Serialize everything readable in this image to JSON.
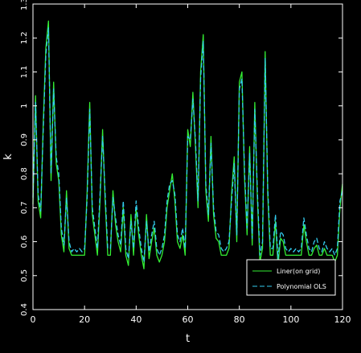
{
  "chart_data": {
    "type": "line",
    "title": "",
    "xlabel": "t",
    "ylabel": "k",
    "xlim": [
      0,
      120
    ],
    "ylim": [
      0.4,
      1.3
    ],
    "xticks": [
      "0",
      "20",
      "40",
      "60",
      "80",
      "100",
      "120"
    ],
    "yticks": [
      "0.4",
      "0.5",
      "0.6",
      "0.7",
      "0.8",
      "0.9",
      "1",
      "1.1",
      "1.2",
      "1.3"
    ],
    "grid": false,
    "legend_position": "bottom-right",
    "colors": {
      "background": "#000000",
      "axes": "#ffffff",
      "series1": "#33ee33",
      "series2": "#33ccee"
    },
    "series": [
      {
        "name": "Liner(on grid)",
        "x": [
          0,
          1,
          2,
          3,
          4,
          5,
          6,
          7,
          8,
          9,
          10,
          11,
          12,
          13,
          14,
          15,
          16,
          17,
          18,
          19,
          20,
          21,
          22,
          23,
          24,
          25,
          26,
          27,
          28,
          29,
          30,
          31,
          32,
          33,
          34,
          35,
          36,
          37,
          38,
          39,
          40,
          41,
          42,
          43,
          44,
          45,
          46,
          47,
          48,
          49,
          50,
          51,
          52,
          53,
          54,
          55,
          56,
          57,
          58,
          59,
          60,
          61,
          62,
          63,
          64,
          65,
          66,
          67,
          68,
          69,
          70,
          71,
          72,
          73,
          74,
          75,
          76,
          77,
          78,
          79,
          80,
          81,
          82,
          83,
          84,
          85,
          86,
          87,
          88,
          89,
          90,
          91,
          92,
          93,
          94,
          95,
          96,
          97,
          98,
          99,
          100,
          101,
          102,
          103,
          104,
          105,
          106,
          107,
          108,
          109,
          110,
          111,
          112,
          113,
          114,
          115,
          116,
          117,
          118,
          119,
          120
        ],
        "y": [
          0.71,
          1.03,
          0.72,
          0.67,
          0.95,
          1.17,
          1.25,
          0.78,
          1.07,
          0.83,
          0.78,
          0.62,
          0.57,
          0.75,
          0.58,
          0.56,
          0.56,
          0.56,
          0.56,
          0.56,
          0.56,
          0.75,
          1.01,
          0.68,
          0.62,
          0.56,
          0.72,
          0.93,
          0.72,
          0.56,
          0.56,
          0.75,
          0.65,
          0.6,
          0.57,
          0.7,
          0.56,
          0.53,
          0.68,
          0.56,
          0.7,
          0.62,
          0.56,
          0.52,
          0.68,
          0.55,
          0.6,
          0.64,
          0.56,
          0.54,
          0.56,
          0.6,
          0.7,
          0.75,
          0.8,
          0.72,
          0.6,
          0.58,
          0.62,
          0.56,
          0.93,
          0.88,
          1.04,
          0.88,
          0.7,
          1.1,
          1.21,
          0.75,
          0.66,
          0.91,
          0.68,
          0.61,
          0.6,
          0.56,
          0.56,
          0.56,
          0.58,
          0.74,
          0.85,
          0.6,
          1.07,
          1.1,
          0.79,
          0.62,
          0.88,
          0.59,
          1.01,
          0.73,
          0.54,
          0.58,
          1.16,
          0.74,
          0.56,
          0.56,
          0.66,
          0.53,
          0.61,
          0.6,
          0.56,
          0.56,
          0.56,
          0.56,
          0.56,
          0.56,
          0.56,
          0.65,
          0.6,
          0.56,
          0.56,
          0.58,
          0.59,
          0.56,
          0.56,
          0.58,
          0.56,
          0.56,
          0.56,
          0.54,
          0.56,
          0.7,
          0.77
        ]
      },
      {
        "name": "Polynomial OLS",
        "x": [
          0,
          1,
          2,
          3,
          4,
          5,
          6,
          7,
          8,
          9,
          10,
          11,
          12,
          13,
          14,
          15,
          16,
          17,
          18,
          19,
          20,
          21,
          22,
          23,
          24,
          25,
          26,
          27,
          28,
          29,
          30,
          31,
          32,
          33,
          34,
          35,
          36,
          37,
          38,
          39,
          40,
          41,
          42,
          43,
          44,
          45,
          46,
          47,
          48,
          49,
          50,
          51,
          52,
          53,
          54,
          55,
          56,
          57,
          58,
          59,
          60,
          61,
          62,
          63,
          64,
          65,
          66,
          67,
          68,
          69,
          70,
          71,
          72,
          73,
          74,
          75,
          76,
          77,
          78,
          79,
          80,
          81,
          82,
          83,
          84,
          85,
          86,
          87,
          88,
          89,
          90,
          91,
          92,
          93,
          94,
          95,
          96,
          97,
          98,
          99,
          100,
          101,
          102,
          103,
          104,
          105,
          106,
          107,
          108,
          109,
          110,
          111,
          112,
          113,
          114,
          115,
          116,
          117,
          118,
          119,
          120
        ],
        "y": [
          0.73,
          1.01,
          0.74,
          0.69,
          0.93,
          1.15,
          1.23,
          0.8,
          1.05,
          0.85,
          0.8,
          0.64,
          0.59,
          0.73,
          0.6,
          0.57,
          0.58,
          0.57,
          0.58,
          0.57,
          0.58,
          0.73,
          0.99,
          0.7,
          0.64,
          0.58,
          0.74,
          0.91,
          0.74,
          0.58,
          0.58,
          0.73,
          0.67,
          0.62,
          0.59,
          0.72,
          0.58,
          0.55,
          0.66,
          0.58,
          0.72,
          0.64,
          0.58,
          0.54,
          0.66,
          0.57,
          0.62,
          0.66,
          0.58,
          0.56,
          0.58,
          0.62,
          0.72,
          0.77,
          0.78,
          0.74,
          0.62,
          0.6,
          0.64,
          0.58,
          0.91,
          0.9,
          1.02,
          0.9,
          0.72,
          1.08,
          1.19,
          0.77,
          0.68,
          0.89,
          0.7,
          0.63,
          0.62,
          0.58,
          0.57,
          0.58,
          0.6,
          0.72,
          0.83,
          0.62,
          1.05,
          1.08,
          0.81,
          0.64,
          0.86,
          0.61,
          0.99,
          0.75,
          0.56,
          0.6,
          1.14,
          0.76,
          0.58,
          0.58,
          0.68,
          0.55,
          0.63,
          0.62,
          0.58,
          0.57,
          0.58,
          0.57,
          0.58,
          0.57,
          0.58,
          0.67,
          0.62,
          0.58,
          0.57,
          0.6,
          0.61,
          0.58,
          0.57,
          0.6,
          0.58,
          0.57,
          0.58,
          0.56,
          0.58,
          0.72,
          0.75
        ]
      }
    ]
  }
}
